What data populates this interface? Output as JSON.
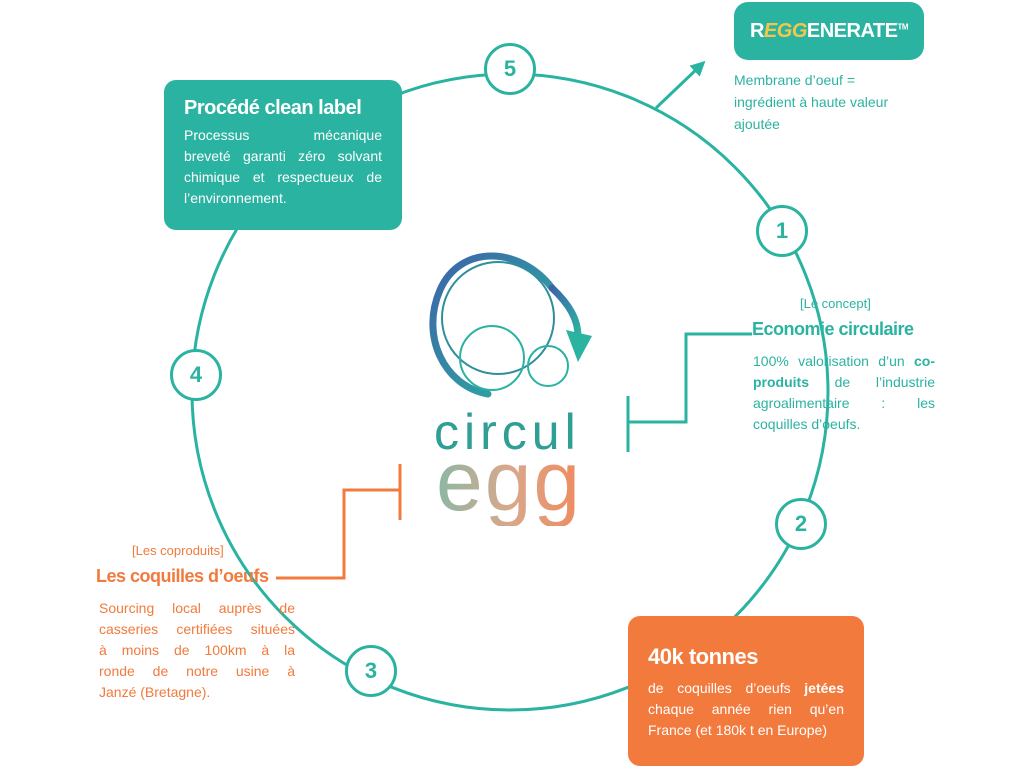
{
  "brand": {
    "reggenerate": {
      "r": "R",
      "egg": "EGG",
      "rest": "ENERATE",
      "tm": "TM"
    },
    "circul": "circul",
    "egg": "egg"
  },
  "steps": [
    "1",
    "2",
    "3",
    "4",
    "5"
  ],
  "reggenerate_caption": [
    "Membrane d’oeuf =",
    "ingrédient à haute valeur",
    "ajoutée"
  ],
  "concept": {
    "tag": "[Le concept]",
    "title": "Economie circulaire",
    "lines": [
      {
        "before": "100% valorisation d’un ",
        "bold": "co-",
        "after": ""
      },
      {
        "before": "",
        "bold": "produits",
        "after": " de l’industrie"
      },
      {
        "before": "agroalimentaire : les",
        "bold": "",
        "after": ""
      },
      {
        "before": "coquilles d’oeufs.",
        "bold": "",
        "after": ""
      }
    ]
  },
  "clean_label": {
    "title": "Procédé clean label",
    "lines": [
      "Processus mécanique",
      "breveté garanti zéro solvant",
      "chimique et respectueux de",
      "l’environnement."
    ]
  },
  "coproduits": {
    "tag": "[Les coproduits]",
    "title": "Les coquilles d’oeufs",
    "lines": [
      "Sourcing local auprès de",
      "casseries certifiées situées",
      "à moins de 100km à la",
      "ronde de notre usine à",
      "Janzé (Bretagne)."
    ]
  },
  "tonnes": {
    "title": "40k tonnes",
    "lines": [
      {
        "before": "de coquilles d’oeufs ",
        "bold": "jetées",
        "after": ""
      },
      {
        "before": "chaque année rien qu’en",
        "bold": "",
        "after": ""
      },
      {
        "before": "France (et 180k t en Europe)",
        "bold": "",
        "after": ""
      }
    ]
  },
  "colors": {
    "teal": "#2bb3a1",
    "orange": "#f27a3d",
    "blue": "#4a70b0"
  }
}
